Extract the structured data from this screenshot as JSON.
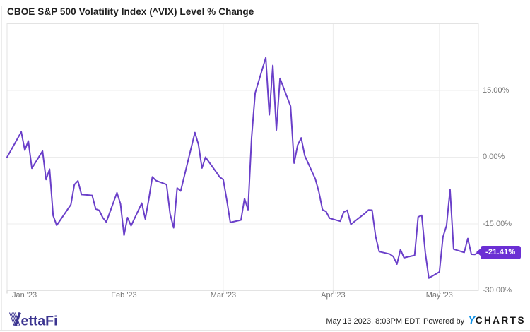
{
  "title": "CBOE S&P 500 Volatility Index (^VIX) Level % Change",
  "colors": {
    "line": "#6A3FC9",
    "badge_bg": "#6B2FD4",
    "grid": "#ececec",
    "plot_border": "#e3e3e3",
    "tick_stub": "#cccccc",
    "tick_label": "#757575",
    "title_text": "#1f1f1f",
    "vettafi": "#3B3490",
    "ycharts_y": "#1191E5",
    "ycharts_text": "#161616"
  },
  "badge": {
    "label": "-21.41%"
  },
  "footer": {
    "vettafi_text": "ettaFi",
    "timestamp_text": "May 13 2023, 8:03PM EDT. Powered by",
    "ycharts_y": "Y",
    "ycharts_rest": "CHARTS"
  },
  "chart_data": {
    "type": "line",
    "title": "CBOE S&P 500 Volatility Index (^VIX) Level % Change",
    "xlabel": "",
    "ylabel": "",
    "ylim": [
      -30,
      30
    ],
    "x_range": [
      "2022-12-30",
      "2023-05-12"
    ],
    "grid": true,
    "legend": "none",
    "y_ticks": [
      {
        "value": 15,
        "label": "15.00%"
      },
      {
        "value": 0,
        "label": "0.00%"
      },
      {
        "value": -15,
        "label": "-15.00%"
      },
      {
        "value": -30,
        "label": "-30.00%"
      }
    ],
    "x_ticks": [
      {
        "date": "2022-12-30",
        "label": "Jan '23",
        "align": "left"
      },
      {
        "date": "2023-02-01",
        "label": "Feb '23",
        "align": "center"
      },
      {
        "date": "2023-03-01",
        "label": "Mar '23",
        "align": "center"
      },
      {
        "date": "2023-04-01",
        "label": "Apr '23",
        "align": "center"
      },
      {
        "date": "2023-05-01",
        "label": "May '23",
        "align": "center"
      }
    ],
    "last_value_label": "-21.41%",
    "series": [
      {
        "name": "CBOE S&P 500 Volatility Index (^VIX) Level % Change",
        "points": [
          [
            "2022-12-30",
            0.0
          ],
          [
            "2023-01-03",
            5.68
          ],
          [
            "2023-01-04",
            1.57
          ],
          [
            "2023-01-05",
            3.65
          ],
          [
            "2023-01-06",
            -2.49
          ],
          [
            "2023-01-09",
            1.38
          ],
          [
            "2023-01-10",
            -5.03
          ],
          [
            "2023-01-11",
            -2.68
          ],
          [
            "2023-01-12",
            -13.11
          ],
          [
            "2023-01-13",
            -15.32
          ],
          [
            "2023-01-17",
            -10.66
          ],
          [
            "2023-01-18",
            -6.14
          ],
          [
            "2023-01-19",
            -5.31
          ],
          [
            "2023-01-20",
            -8.4
          ],
          [
            "2023-01-23",
            -8.58
          ],
          [
            "2023-01-24",
            -11.63
          ],
          [
            "2023-01-25",
            -11.95
          ],
          [
            "2023-01-26",
            -13.57
          ],
          [
            "2023-01-27",
            -14.58
          ],
          [
            "2023-01-30",
            -7.98
          ],
          [
            "2023-01-31",
            -10.48
          ],
          [
            "2023-02-01",
            -17.54
          ],
          [
            "2023-02-02",
            -13.57
          ],
          [
            "2023-02-03",
            -15.41
          ],
          [
            "2023-02-06",
            -10.34
          ],
          [
            "2023-02-07",
            -13.89
          ],
          [
            "2023-02-08",
            -9.41
          ],
          [
            "2023-02-09",
            -4.43
          ],
          [
            "2023-02-10",
            -5.26
          ],
          [
            "2023-02-13",
            -6.14
          ],
          [
            "2023-02-14",
            -12.74
          ],
          [
            "2023-02-15",
            -15.87
          ],
          [
            "2023-02-16",
            -6.92
          ],
          [
            "2023-02-17",
            -7.61
          ],
          [
            "2023-02-21",
            5.54
          ],
          [
            "2023-02-22",
            2.86
          ],
          [
            "2023-02-23",
            -2.45
          ],
          [
            "2023-02-24",
            0.0
          ],
          [
            "2023-02-27",
            -3.32
          ],
          [
            "2023-02-28",
            -4.48
          ],
          [
            "2023-03-01",
            -5.03
          ],
          [
            "2023-03-02",
            -9.6
          ],
          [
            "2023-03-03",
            -14.67
          ],
          [
            "2023-03-06",
            -14.12
          ],
          [
            "2023-03-07",
            -9.28
          ],
          [
            "2023-03-08",
            -11.81
          ],
          [
            "2023-03-09",
            4.34
          ],
          [
            "2023-03-10",
            14.44
          ],
          [
            "2023-03-13",
            22.38
          ],
          [
            "2023-03-14",
            9.51
          ],
          [
            "2023-03-15",
            20.63
          ],
          [
            "2023-03-16",
            6.09
          ],
          [
            "2023-03-17",
            17.72
          ],
          [
            "2023-03-20",
            11.44
          ],
          [
            "2023-03-21",
            -1.34
          ],
          [
            "2023-03-22",
            2.72
          ],
          [
            "2023-03-23",
            4.34
          ],
          [
            "2023-03-24",
            0.32
          ],
          [
            "2023-03-27",
            -4.94
          ],
          [
            "2023-03-28",
            -7.84
          ],
          [
            "2023-03-29",
            -11.77
          ],
          [
            "2023-03-30",
            -12.23
          ],
          [
            "2023-03-31",
            -13.71
          ],
          [
            "2023-04-03",
            -14.4
          ],
          [
            "2023-04-04",
            -12.32
          ],
          [
            "2023-04-05",
            -11.95
          ],
          [
            "2023-04-06",
            -15.09
          ],
          [
            "2023-04-10",
            -12.6
          ],
          [
            "2023-04-11",
            -11.86
          ],
          [
            "2023-04-12",
            -11.91
          ],
          [
            "2023-04-13",
            -17.86
          ],
          [
            "2023-04-14",
            -21.23
          ],
          [
            "2023-04-17",
            -21.78
          ],
          [
            "2023-04-18",
            -22.33
          ],
          [
            "2023-04-19",
            -24.04
          ],
          [
            "2023-04-20",
            -20.77
          ],
          [
            "2023-04-21",
            -22.61
          ],
          [
            "2023-04-24",
            -22.06
          ],
          [
            "2023-04-25",
            -13.43
          ],
          [
            "2023-04-26",
            -13.06
          ],
          [
            "2023-04-27",
            -21.41
          ],
          [
            "2023-04-28",
            -27.18
          ],
          [
            "2023-05-01",
            -25.8
          ],
          [
            "2023-05-02",
            -17.95
          ],
          [
            "2023-05-03",
            -15.37
          ],
          [
            "2023-05-04",
            -7.29
          ],
          [
            "2023-05-05",
            -20.67
          ],
          [
            "2023-05-08",
            -21.41
          ],
          [
            "2023-05-09",
            -18.27
          ],
          [
            "2023-05-10",
            -21.83
          ],
          [
            "2023-05-11",
            -21.88
          ],
          [
            "2023-05-12",
            -21.41
          ]
        ]
      }
    ]
  }
}
